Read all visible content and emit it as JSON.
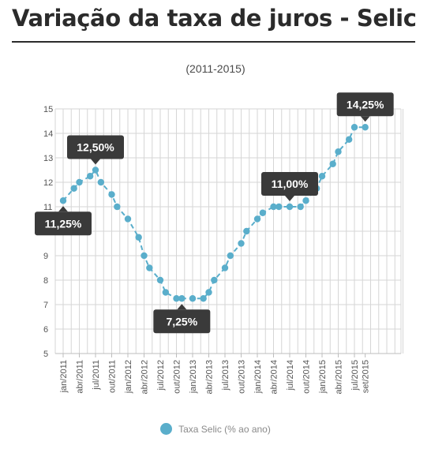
{
  "header": {
    "title": "Variação da taxa de juros - Selic",
    "subtitle": "(2011-2015)"
  },
  "colors": {
    "series": "#5aaecb",
    "callout_bg": "#3a3a3a",
    "callout_text": "#ffffff",
    "grid": "#d6d6d6"
  },
  "chart_data": {
    "type": "line",
    "title": "Variação da taxa de juros - Selic",
    "subtitle": "(2011-2015)",
    "xlabel": "",
    "ylabel": "",
    "ylim": [
      5,
      15
    ],
    "yticks": [
      5,
      6,
      7,
      8,
      9,
      10,
      11,
      12,
      13,
      14,
      15
    ],
    "grid": true,
    "legend_position": "bottom",
    "x_tick_labels": [
      "jan/2011",
      "abr/2011",
      "jul/2011",
      "out/2011",
      "jan/2012",
      "abr/2012",
      "jul/2012",
      "out/2012",
      "jan/2013",
      "abr/2013",
      "jul/2013",
      "out/2013",
      "jan/2014",
      "abr/2014",
      "jul/2014",
      "out/2014",
      "jan/2015",
      "abr/2015",
      "jul/2015",
      "set/2015"
    ],
    "x": [
      "jan/2011",
      "mar/2011",
      "abr/2011",
      "jun/2011",
      "jul/2011",
      "ago/2011",
      "out/2011",
      "nov/2011",
      "jan/2012",
      "mar/2012",
      "abr/2012",
      "mai/2012",
      "jul/2012",
      "ago/2012",
      "out/2012",
      "nov/2012",
      "jan/2013",
      "mar/2013",
      "abr/2013",
      "mai/2013",
      "jul/2013",
      "ago/2013",
      "out/2013",
      "nov/2013",
      "jan/2014",
      "fev/2014",
      "abr/2014",
      "mai/2014",
      "jul/2014",
      "set/2014",
      "out/2014",
      "dez/2014",
      "jan/2015",
      "mar/2015",
      "abr/2015",
      "jun/2015",
      "jul/2015",
      "set/2015"
    ],
    "series": [
      {
        "name": "Taxa Selic (% ao ano)",
        "values": [
          11.25,
          11.75,
          12.0,
          12.25,
          12.5,
          12.0,
          11.5,
          11.0,
          10.5,
          9.75,
          9.0,
          8.5,
          8.0,
          7.5,
          7.25,
          7.25,
          7.25,
          7.25,
          7.5,
          8.0,
          8.5,
          9.0,
          9.5,
          10.0,
          10.5,
          10.75,
          11.0,
          11.0,
          11.0,
          11.0,
          11.25,
          11.75,
          12.25,
          12.75,
          13.25,
          13.75,
          14.25,
          14.25
        ]
      }
    ],
    "annotations": [
      {
        "text": "11,25%",
        "point": 0,
        "position": "below"
      },
      {
        "text": "12,50%",
        "point": 4,
        "position": "above"
      },
      {
        "text": "7,25%",
        "point": 15,
        "position": "below"
      },
      {
        "text": "11,00%",
        "point": 28,
        "position": "above"
      },
      {
        "text": "14,25%",
        "point": 37,
        "position": "above"
      }
    ]
  }
}
